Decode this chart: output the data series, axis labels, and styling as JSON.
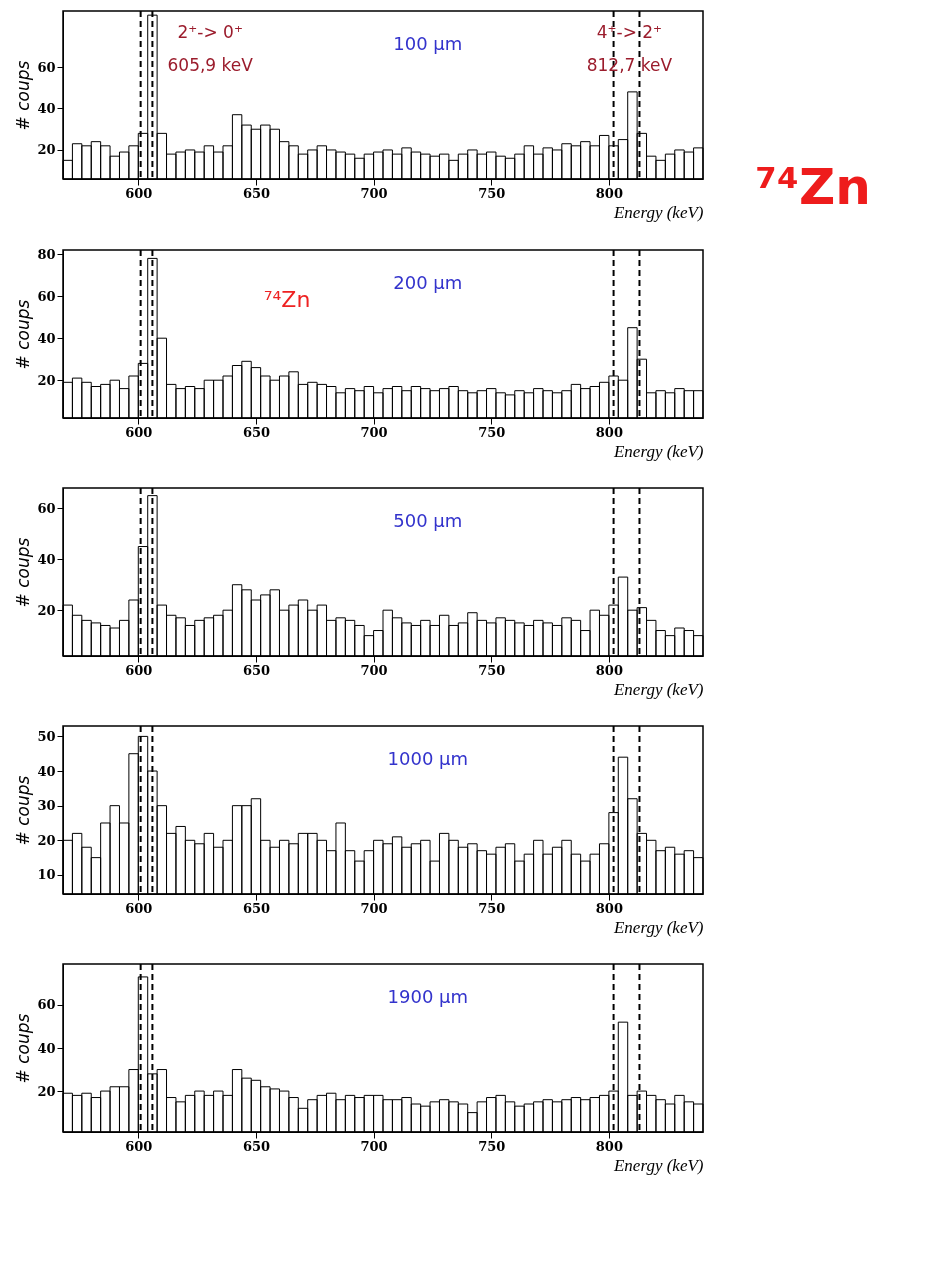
{
  "chart_data": [
    {
      "type": "histogram",
      "title": "100 µm",
      "xlabel": "Energy (keV)",
      "ylabel": "# coups",
      "color": "#000000",
      "bins": [
        568,
        572,
        576,
        580,
        584,
        588,
        592,
        596,
        600,
        604,
        608,
        612,
        616,
        620,
        624,
        628,
        632,
        636,
        640,
        644,
        648,
        652,
        656,
        660,
        664,
        668,
        672,
        676,
        680,
        684,
        688,
        692,
        696,
        700,
        704,
        708,
        712,
        716,
        720,
        724,
        728,
        732,
        736,
        740,
        744,
        748,
        752,
        756,
        760,
        764,
        768,
        772,
        776,
        780,
        784,
        788,
        792,
        796,
        800,
        804,
        808,
        812,
        816,
        820,
        824,
        828,
        832,
        836,
        840
      ],
      "values": [
        15,
        23,
        22,
        24,
        22,
        17,
        19,
        22,
        28,
        85,
        28,
        18,
        19,
        20,
        19,
        22,
        19,
        22,
        37,
        32,
        30,
        32,
        30,
        24,
        22,
        18,
        20,
        22,
        20,
        19,
        18,
        16,
        18,
        19,
        20,
        18,
        21,
        19,
        18,
        17,
        18,
        15,
        18,
        20,
        18,
        19,
        17,
        16,
        18,
        22,
        18,
        21,
        20,
        23,
        22,
        24,
        22,
        27,
        22,
        25,
        48,
        28,
        17,
        15,
        18,
        20,
        19,
        21
      ],
      "xlim": [
        568,
        840
      ],
      "xticks": [
        600,
        650,
        700,
        750,
        800
      ],
      "ylim": [
        6,
        87
      ],
      "yticks": [
        20,
        40,
        60
      ],
      "grid": false,
      "ref_lines": [
        {
          "axis": "x",
          "value": 601,
          "line_style": "dashed"
        },
        {
          "axis": "x",
          "value": 606,
          "line_style": "dashed"
        },
        {
          "axis": "x",
          "value": 802,
          "line_style": "dashed"
        },
        {
          "axis": "x",
          "value": 813,
          "line_style": "dashed"
        }
      ],
      "annotations": [
        "2⁺-> 0⁺",
        "605,9 keV",
        "4⁺-> 2⁺",
        "812,7 keV",
        "⁷⁴Zn"
      ]
    },
    {
      "type": "histogram",
      "title": "200 µm",
      "xlabel": "Energy (keV)",
      "ylabel": "# coups",
      "color": "#000000",
      "bins": [
        568,
        572,
        576,
        580,
        584,
        588,
        592,
        596,
        600,
        604,
        608,
        612,
        616,
        620,
        624,
        628,
        632,
        636,
        640,
        644,
        648,
        652,
        656,
        660,
        664,
        668,
        672,
        676,
        680,
        684,
        688,
        692,
        696,
        700,
        704,
        708,
        712,
        716,
        720,
        724,
        728,
        732,
        736,
        740,
        744,
        748,
        752,
        756,
        760,
        764,
        768,
        772,
        776,
        780,
        784,
        788,
        792,
        796,
        800,
        804,
        808,
        812,
        816,
        820,
        824,
        828,
        832,
        836,
        840
      ],
      "values": [
        19,
        21,
        19,
        17,
        18,
        20,
        16,
        22,
        28,
        78,
        40,
        18,
        16,
        17,
        16,
        20,
        20,
        22,
        27,
        29,
        26,
        22,
        20,
        22,
        24,
        18,
        19,
        18,
        17,
        14,
        16,
        15,
        17,
        14,
        16,
        17,
        15,
        17,
        16,
        15,
        16,
        17,
        15,
        14,
        15,
        16,
        14,
        13,
        15,
        14,
        16,
        15,
        14,
        15,
        18,
        16,
        17,
        19,
        22,
        20,
        45,
        30,
        14,
        15,
        14,
        16,
        15,
        15
      ],
      "xlim": [
        568,
        840
      ],
      "xticks": [
        600,
        650,
        700,
        750,
        800
      ],
      "ylim": [
        2,
        82
      ],
      "yticks": [
        20,
        40,
        60,
        80
      ],
      "grid": false,
      "ref_lines": [
        {
          "axis": "x",
          "value": 601,
          "line_style": "dashed"
        },
        {
          "axis": "x",
          "value": 606,
          "line_style": "dashed"
        },
        {
          "axis": "x",
          "value": 802,
          "line_style": "dashed"
        },
        {
          "axis": "x",
          "value": 813,
          "line_style": "dashed"
        }
      ],
      "annotations": [
        "⁷⁴Zn"
      ]
    },
    {
      "type": "histogram",
      "title": "500 µm",
      "xlabel": "Energy (keV)",
      "ylabel": "# coups",
      "color": "#000000",
      "bins": [
        568,
        572,
        576,
        580,
        584,
        588,
        592,
        596,
        600,
        604,
        608,
        612,
        616,
        620,
        624,
        628,
        632,
        636,
        640,
        644,
        648,
        652,
        656,
        660,
        664,
        668,
        672,
        676,
        680,
        684,
        688,
        692,
        696,
        700,
        704,
        708,
        712,
        716,
        720,
        724,
        728,
        732,
        736,
        740,
        744,
        748,
        752,
        756,
        760,
        764,
        768,
        772,
        776,
        780,
        784,
        788,
        792,
        796,
        800,
        804,
        808,
        812,
        816,
        820,
        824,
        828,
        832,
        836,
        840
      ],
      "values": [
        22,
        18,
        16,
        15,
        14,
        13,
        16,
        24,
        45,
        65,
        22,
        18,
        17,
        14,
        16,
        17,
        18,
        20,
        30,
        28,
        24,
        26,
        28,
        20,
        22,
        24,
        20,
        22,
        16,
        17,
        16,
        14,
        10,
        12,
        20,
        17,
        15,
        14,
        16,
        14,
        18,
        14,
        15,
        19,
        16,
        15,
        17,
        16,
        15,
        14,
        16,
        15,
        14,
        17,
        16,
        12,
        20,
        18,
        22,
        33,
        20,
        21,
        16,
        12,
        10,
        13,
        12,
        10
      ],
      "xlim": [
        568,
        840
      ],
      "xticks": [
        600,
        650,
        700,
        750,
        800
      ],
      "ylim": [
        2,
        68
      ],
      "yticks": [
        20,
        40,
        60
      ],
      "grid": false,
      "ref_lines": [
        {
          "axis": "x",
          "value": 601,
          "line_style": "dashed"
        },
        {
          "axis": "x",
          "value": 606,
          "line_style": "dashed"
        },
        {
          "axis": "x",
          "value": 802,
          "line_style": "dashed"
        },
        {
          "axis": "x",
          "value": 813,
          "line_style": "dashed"
        }
      ]
    },
    {
      "type": "histogram",
      "title": "1000 µm",
      "xlabel": "Energy (keV)",
      "ylabel": "# coups",
      "color": "#000000",
      "bins": [
        568,
        572,
        576,
        580,
        584,
        588,
        592,
        596,
        600,
        604,
        608,
        612,
        616,
        620,
        624,
        628,
        632,
        636,
        640,
        644,
        648,
        652,
        656,
        660,
        664,
        668,
        672,
        676,
        680,
        684,
        688,
        692,
        696,
        700,
        704,
        708,
        712,
        716,
        720,
        724,
        728,
        732,
        736,
        740,
        744,
        748,
        752,
        756,
        760,
        764,
        768,
        772,
        776,
        780,
        784,
        788,
        792,
        796,
        800,
        804,
        808,
        812,
        816,
        820,
        824,
        828,
        832,
        836,
        840
      ],
      "values": [
        20,
        22,
        18,
        15,
        25,
        30,
        25,
        45,
        50,
        40,
        30,
        22,
        24,
        20,
        19,
        22,
        18,
        20,
        30,
        30,
        32,
        20,
        18,
        20,
        19,
        22,
        22,
        20,
        17,
        25,
        17,
        14,
        17,
        20,
        19,
        21,
        18,
        19,
        20,
        14,
        22,
        20,
        18,
        19,
        17,
        16,
        18,
        19,
        14,
        16,
        20,
        16,
        18,
        20,
        16,
        14,
        16,
        19,
        28,
        44,
        32,
        22,
        20,
        17,
        18,
        16,
        17,
        15
      ],
      "xlim": [
        568,
        840
      ],
      "xticks": [
        600,
        650,
        700,
        750,
        800
      ],
      "ylim": [
        4.5,
        53
      ],
      "yticks": [
        10,
        20,
        30,
        40,
        50
      ],
      "grid": false,
      "ref_lines": [
        {
          "axis": "x",
          "value": 601,
          "line_style": "dashed"
        },
        {
          "axis": "x",
          "value": 606,
          "line_style": "dashed"
        },
        {
          "axis": "x",
          "value": 802,
          "line_style": "dashed"
        },
        {
          "axis": "x",
          "value": 813,
          "line_style": "dashed"
        }
      ]
    },
    {
      "type": "histogram",
      "title": "1900 µm",
      "xlabel": "Energy (keV)",
      "ylabel": "# coups",
      "color": "#000000",
      "bins": [
        568,
        572,
        576,
        580,
        584,
        588,
        592,
        596,
        600,
        604,
        608,
        612,
        616,
        620,
        624,
        628,
        632,
        636,
        640,
        644,
        648,
        652,
        656,
        660,
        664,
        668,
        672,
        676,
        680,
        684,
        688,
        692,
        696,
        700,
        704,
        708,
        712,
        716,
        720,
        724,
        728,
        732,
        736,
        740,
        744,
        748,
        752,
        756,
        760,
        764,
        768,
        772,
        776,
        780,
        784,
        788,
        792,
        796,
        800,
        804,
        808,
        812,
        816,
        820,
        824,
        828,
        832,
        836,
        840
      ],
      "values": [
        19,
        18,
        19,
        17,
        20,
        22,
        22,
        30,
        73,
        28,
        30,
        17,
        15,
        18,
        20,
        18,
        20,
        18,
        30,
        26,
        25,
        22,
        21,
        20,
        17,
        12,
        16,
        18,
        19,
        16,
        18,
        17,
        18,
        18,
        16,
        16,
        17,
        14,
        13,
        15,
        16,
        15,
        14,
        10,
        15,
        17,
        18,
        15,
        13,
        14,
        15,
        16,
        15,
        16,
        17,
        16,
        17,
        18,
        20,
        52,
        18,
        20,
        18,
        16,
        14,
        18,
        15,
        14
      ],
      "xlim": [
        568,
        840
      ],
      "xticks": [
        600,
        650,
        700,
        750,
        800
      ],
      "ylim": [
        1,
        79
      ],
      "yticks": [
        20,
        40,
        60
      ],
      "grid": false,
      "ref_lines": [
        {
          "axis": "x",
          "value": 601,
          "line_style": "dashed"
        },
        {
          "axis": "x",
          "value": 606,
          "line_style": "dashed"
        },
        {
          "axis": "x",
          "value": 802,
          "line_style": "dashed"
        },
        {
          "axis": "x",
          "value": 813,
          "line_style": "dashed"
        }
      ]
    }
  ]
}
